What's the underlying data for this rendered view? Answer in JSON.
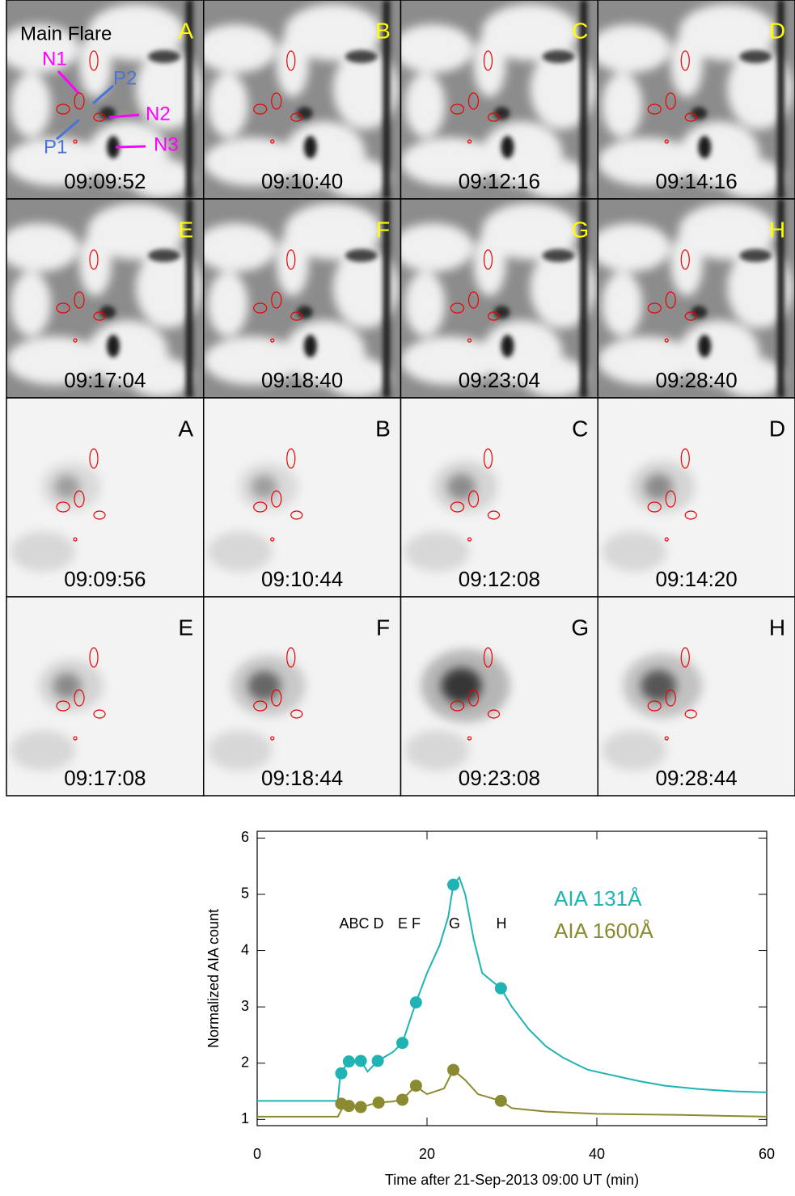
{
  "panels": [
    {
      "label": "A",
      "time": "09:09:52"
    },
    {
      "label": "B",
      "time": "09:10:40"
    },
    {
      "label": "C",
      "time": "09:12:16"
    },
    {
      "label": "D",
      "time": "09:14:16"
    },
    {
      "label": "E",
      "time": "09:17:04"
    },
    {
      "label": "F",
      "time": "09:18:40"
    },
    {
      "label": "G",
      "time": "09:23:04"
    },
    {
      "label": "H",
      "time": "09:28:40"
    },
    {
      "label": "A",
      "time": "09:09:56"
    },
    {
      "label": "B",
      "time": "09:10:44"
    },
    {
      "label": "C",
      "time": "09:12:08"
    },
    {
      "label": "D",
      "time": "09:14:20"
    },
    {
      "label": "E",
      "time": "09:17:08"
    },
    {
      "label": "F",
      "time": "09:18:44"
    },
    {
      "label": "G",
      "time": "09:23:08"
    },
    {
      "label": "H",
      "time": "09:28:44"
    }
  ],
  "panel_annotations": {
    "title": "Main Flare",
    "labels": [
      "N1",
      "P2",
      "N2",
      "P1",
      "N3"
    ]
  },
  "chart_data": {
    "type": "line",
    "xlabel": "Time after 21-Sep-2013 09:00 UT (min)",
    "ylabel": "Normalized AIA count",
    "xlim": [
      0,
      60
    ],
    "xticks": [
      0,
      20,
      40,
      60
    ],
    "ylim": [
      0.89,
      6.12
    ],
    "yticks": [
      1,
      2,
      3,
      4,
      5,
      6
    ],
    "annotations": [
      "ABC",
      "D",
      "E F",
      "G",
      "H"
    ],
    "series": [
      {
        "name": "AIA 131Å",
        "color": "#1fb3b3",
        "x": [
          0,
          9.5,
          9.8,
          10.8,
          12.2,
          13,
          14.2,
          16,
          17.1,
          18.7,
          20,
          21.5,
          22.5,
          23.1,
          23.8,
          24.5,
          25.5,
          26.5,
          28.7,
          30,
          32,
          34,
          36,
          38,
          39,
          42,
          45,
          48,
          52,
          56,
          60
        ],
        "values": [
          1.33,
          1.33,
          1.82,
          2.03,
          2.04,
          1.85,
          2.04,
          2.2,
          2.36,
          3.08,
          3.6,
          4.1,
          4.6,
          5.17,
          5.3,
          5.0,
          4.2,
          3.6,
          3.33,
          3.0,
          2.6,
          2.3,
          2.1,
          1.95,
          1.88,
          1.78,
          1.68,
          1.6,
          1.54,
          1.5,
          1.48
        ],
        "marker_x": [
          9.9,
          10.8,
          12.2,
          14.2,
          17.1,
          18.7,
          23.1,
          28.7
        ],
        "marker_values": [
          1.82,
          2.03,
          2.04,
          2.04,
          2.36,
          3.08,
          5.17,
          3.33
        ]
      },
      {
        "name": "AIA 1600Å",
        "color": "#8a8a30",
        "x": [
          0,
          9.5,
          10.3,
          11,
          12,
          13,
          14.2,
          16,
          17.1,
          18.7,
          19.5,
          20,
          22,
          23.1,
          24.5,
          26,
          28.7,
          30,
          34,
          40,
          50,
          60
        ],
        "values": [
          1.05,
          1.05,
          1.28,
          1.24,
          1.22,
          1.25,
          1.3,
          1.32,
          1.36,
          1.6,
          1.5,
          1.45,
          1.55,
          1.88,
          1.7,
          1.45,
          1.33,
          1.2,
          1.14,
          1.1,
          1.08,
          1.05
        ],
        "marker_x": [
          9.9,
          10.8,
          12.2,
          14.3,
          17.1,
          18.7,
          23.1,
          28.7
        ],
        "marker_values": [
          1.28,
          1.24,
          1.22,
          1.3,
          1.35,
          1.6,
          1.88,
          1.33
        ]
      }
    ]
  }
}
